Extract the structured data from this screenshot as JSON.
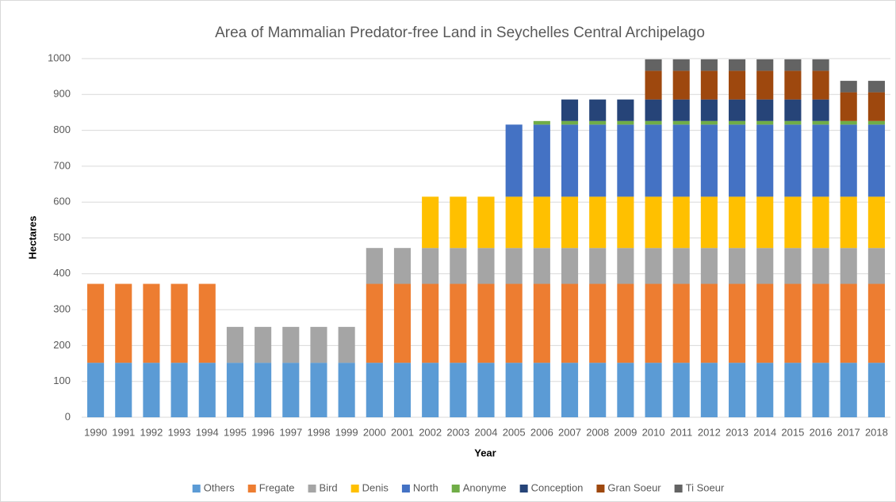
{
  "chart_data": {
    "type": "stacked_bar",
    "title": "Area of Mammalian Predator-free Land in Seychelles Central Archipelago",
    "x_label": "Year",
    "y_label": "Hectares",
    "categories": [
      "1990",
      "1991",
      "1992",
      "1993",
      "1994",
      "1995",
      "1996",
      "1997",
      "1998",
      "1999",
      "2000",
      "2001",
      "2002",
      "2003",
      "2004",
      "2005",
      "2006",
      "2007",
      "2008",
      "2009",
      "2010",
      "2011",
      "2012",
      "2013",
      "2014",
      "2015",
      "2016",
      "2017",
      "2018"
    ],
    "series": [
      {
        "name": "Others",
        "color": "#5b9bd5",
        "values": [
          152,
          152,
          152,
          152,
          152,
          152,
          152,
          152,
          152,
          152,
          152,
          152,
          152,
          152,
          152,
          152,
          152,
          152,
          152,
          152,
          152,
          152,
          152,
          152,
          152,
          152,
          152,
          152,
          152
        ]
      },
      {
        "name": "Fregate",
        "color": "#ed7d31",
        "values": [
          220,
          220,
          220,
          220,
          220,
          0,
          0,
          0,
          0,
          0,
          220,
          220,
          220,
          220,
          220,
          220,
          220,
          220,
          220,
          220,
          220,
          220,
          220,
          220,
          220,
          220,
          220,
          220,
          220
        ]
      },
      {
        "name": "Bird",
        "color": "#a5a5a5",
        "values": [
          0,
          0,
          0,
          0,
          0,
          100,
          100,
          100,
          100,
          100,
          100,
          100,
          100,
          100,
          100,
          100,
          100,
          100,
          100,
          100,
          100,
          100,
          100,
          100,
          100,
          100,
          100,
          100,
          100
        ]
      },
      {
        "name": "Denis",
        "color": "#ffc000",
        "values": [
          0,
          0,
          0,
          0,
          0,
          0,
          0,
          0,
          0,
          0,
          0,
          0,
          143,
          143,
          143,
          143,
          143,
          143,
          143,
          143,
          143,
          143,
          143,
          143,
          143,
          143,
          143,
          143,
          143
        ]
      },
      {
        "name": "North",
        "color": "#4472c4",
        "values": [
          0,
          0,
          0,
          0,
          0,
          0,
          0,
          0,
          0,
          0,
          0,
          0,
          0,
          0,
          0,
          201,
          201,
          201,
          201,
          201,
          201,
          201,
          201,
          201,
          201,
          201,
          201,
          201,
          201
        ]
      },
      {
        "name": "Anonyme",
        "color": "#70ad47",
        "values": [
          0,
          0,
          0,
          0,
          0,
          0,
          0,
          0,
          0,
          0,
          0,
          0,
          0,
          0,
          0,
          0,
          10,
          10,
          10,
          10,
          10,
          10,
          10,
          10,
          10,
          10,
          10,
          10,
          10
        ]
      },
      {
        "name": "Conception",
        "color": "#264478",
        "values": [
          0,
          0,
          0,
          0,
          0,
          0,
          0,
          0,
          0,
          0,
          0,
          0,
          0,
          0,
          0,
          0,
          0,
          60,
          60,
          60,
          60,
          60,
          60,
          60,
          60,
          60,
          60,
          0,
          0
        ]
      },
      {
        "name": "Gran Soeur",
        "color": "#9e480e",
        "values": [
          0,
          0,
          0,
          0,
          0,
          0,
          0,
          0,
          0,
          0,
          0,
          0,
          0,
          0,
          0,
          0,
          0,
          0,
          0,
          0,
          80,
          80,
          80,
          80,
          80,
          80,
          80,
          80,
          80
        ]
      },
      {
        "name": "Ti Soeur",
        "color": "#636363",
        "values": [
          0,
          0,
          0,
          0,
          0,
          0,
          0,
          0,
          0,
          0,
          0,
          0,
          0,
          0,
          0,
          0,
          0,
          0,
          0,
          0,
          32,
          32,
          32,
          32,
          32,
          32,
          32,
          32,
          32
        ]
      }
    ],
    "ylim": [
      0,
      1000
    ],
    "yticks": [
      0,
      100,
      200,
      300,
      400,
      500,
      600,
      700,
      800,
      900,
      1000
    ],
    "grid": true,
    "legend": "bottom"
  }
}
